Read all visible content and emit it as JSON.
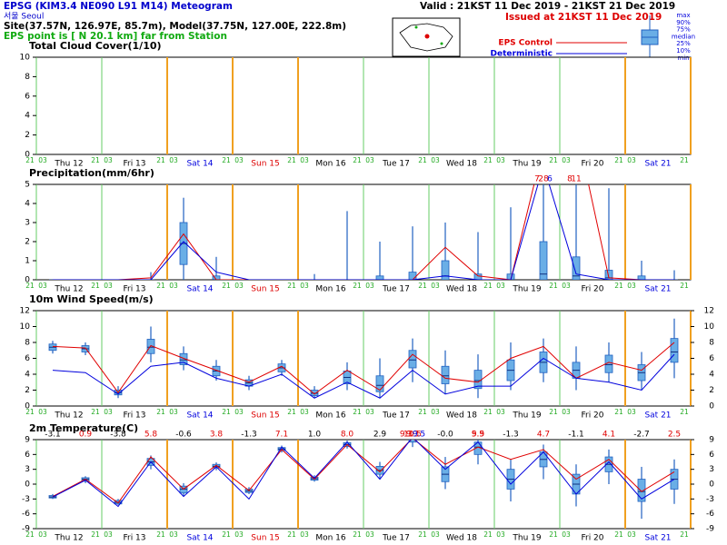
{
  "header": {
    "title": "EPSG (KIM3.4 NE090 L91 M14) Meteogram",
    "station": "서울    Seoul",
    "site": "Site(37.57N, 126.97E,  85.7m), Model(37.75N, 127.00E, 222.8m)",
    "eps_point": "EPS point is [  N  20.1 km] far from Station",
    "valid": "Valid : 21KST 11 Dec 2019 - 21KST 21 Dec 2019",
    "issued": "Issued at 21KST 11 Dec 2019",
    "box_labels": [
      "max",
      "90%",
      "75%",
      "median",
      "25%",
      "10%",
      "min"
    ]
  },
  "time_axis": {
    "hours": [
      "21",
      "03"
    ],
    "days": [
      {
        "label": "Thu 12",
        "color": "#000000"
      },
      {
        "label": "Fri 13",
        "color": "#000000"
      },
      {
        "label": "Sat 14",
        "color": "#0000dd"
      },
      {
        "label": "Sun 15",
        "color": "#dd0000"
      },
      {
        "label": "Mon 16",
        "color": "#000000"
      },
      {
        "label": "Tue 17",
        "color": "#000000"
      },
      {
        "label": "Wed 18",
        "color": "#000000"
      },
      {
        "label": "Thu 19",
        "color": "#000000"
      },
      {
        "label": "Fri 20",
        "color": "#000000"
      },
      {
        "label": "Sat 21",
        "color": "#0000dd"
      }
    ]
  },
  "chart_data": [
    {
      "type": "box",
      "title": "Total Cloud Cover(1/10)",
      "xlim": [
        0,
        240
      ],
      "x": [
        6,
        18,
        30,
        42,
        54,
        66,
        78,
        90,
        102,
        114,
        126,
        138,
        150,
        162,
        174,
        186,
        198,
        210,
        222,
        234
      ],
      "ylim": [
        0,
        10
      ],
      "yticks": [
        0,
        2,
        4,
        6,
        8,
        10
      ],
      "right_ticks": false,
      "series": []
    },
    {
      "type": "box",
      "title": "Precipitation(mm/6hr)",
      "xlim": [
        0,
        240
      ],
      "x": [
        6,
        18,
        30,
        42,
        54,
        66,
        78,
        90,
        102,
        114,
        126,
        138,
        150,
        162,
        174,
        186,
        198,
        210,
        222,
        234
      ],
      "ylim": [
        0,
        5
      ],
      "yticks": [
        0,
        1,
        2,
        3,
        4,
        5
      ],
      "right_ticks": false,
      "series": [
        {
          "type": "box",
          "color": "#6aaee6",
          "values": [
            [
              0,
              0,
              0,
              0,
              0
            ],
            [
              0,
              0,
              0,
              0,
              0
            ],
            [
              0,
              0,
              0,
              0,
              0
            ],
            [
              0,
              0,
              0,
              0,
              0.4
            ],
            [
              0,
              0.8,
              1.9,
              3.0,
              4.3
            ],
            [
              0,
              0,
              0,
              0.2,
              1.2
            ],
            [
              0,
              0,
              0,
              0,
              0
            ],
            [
              0,
              0,
              0,
              0,
              0
            ],
            [
              0,
              0,
              0,
              0,
              0.3
            ],
            [
              0,
              0,
              0,
              0,
              3.6
            ],
            [
              0,
              0,
              0,
              0.2,
              2.0
            ],
            [
              0,
              0,
              0,
              0.4,
              2.8
            ],
            [
              0,
              0,
              0.2,
              1.0,
              3.0
            ],
            [
              0,
              0,
              0,
              0.3,
              2.5
            ],
            [
              0,
              0,
              0,
              0.3,
              3.8
            ],
            [
              0,
              0,
              0.3,
              2.0,
              28
            ],
            [
              0,
              0,
              0.2,
              1.2,
              11
            ],
            [
              0,
              0,
              0.1,
              0.5,
              4.8
            ],
            [
              0,
              0,
              0,
              0.2,
              1.0
            ],
            [
              0,
              0,
              0,
              0,
              0.5
            ]
          ]
        },
        {
          "type": "line",
          "name": "EPS Control",
          "color": "#e00000",
          "values": [
            0,
            0,
            0,
            0.1,
            2.4,
            0,
            0,
            0,
            0,
            0,
            0,
            0,
            1.7,
            0.2,
            0,
            7,
            8,
            0.1,
            0,
            0
          ]
        },
        {
          "type": "line",
          "name": "Deterministic",
          "color": "#0000dd",
          "values": [
            0,
            0,
            0,
            0,
            2.0,
            0.4,
            0,
            0,
            0,
            0,
            0,
            0,
            0.2,
            0,
            0,
            6,
            0.3,
            0,
            0,
            0
          ]
        }
      ]
    },
    {
      "type": "box",
      "title": "10m Wind Speed(m/s)",
      "xlim": [
        0,
        240
      ],
      "x": [
        6,
        18,
        30,
        42,
        54,
        66,
        78,
        90,
        102,
        114,
        126,
        138,
        150,
        162,
        174,
        186,
        198,
        210,
        222,
        234
      ],
      "ylim": [
        0,
        12
      ],
      "yticks": [
        0,
        2,
        4,
        6,
        8,
        10,
        12
      ],
      "right_ticks": true,
      "series": [
        {
          "type": "box",
          "color": "#6aaee6",
          "values": [
            [
              6.6,
              7.0,
              7.4,
              7.8,
              8.2
            ],
            [
              6.4,
              6.8,
              7.2,
              7.6,
              8.0
            ],
            [
              1.0,
              1.4,
              1.7,
              2.0,
              2.5
            ],
            [
              5.5,
              6.6,
              7.4,
              8.4,
              10.0
            ],
            [
              4.5,
              5.2,
              5.8,
              6.6,
              7.5
            ],
            [
              3.2,
              3.8,
              4.4,
              5.0,
              5.8
            ],
            [
              2.0,
              2.5,
              2.9,
              3.3,
              3.8
            ],
            [
              3.8,
              4.3,
              4.8,
              5.3,
              5.8
            ],
            [
              1.0,
              1.3,
              1.6,
              2.0,
              2.5
            ],
            [
              2.0,
              2.8,
              3.6,
              4.4,
              5.5
            ],
            [
              1.0,
              1.8,
              2.6,
              3.8,
              6.0
            ],
            [
              3.0,
              4.8,
              5.8,
              7.0,
              8.5
            ],
            [
              1.5,
              2.8,
              3.8,
              5.0,
              7.0
            ],
            [
              1.0,
              2.2,
              3.2,
              4.5,
              6.5
            ],
            [
              2.0,
              3.2,
              4.5,
              5.8,
              8.0
            ],
            [
              3.0,
              4.2,
              5.5,
              6.8,
              8.5
            ],
            [
              2.0,
              3.5,
              4.5,
              5.5,
              7.5
            ],
            [
              3.0,
              4.2,
              5.2,
              6.4,
              8.0
            ],
            [
              2.0,
              3.2,
              4.2,
              5.2,
              6.8
            ],
            [
              3.5,
              5.5,
              6.8,
              8.5,
              11.0
            ]
          ]
        },
        {
          "type": "line",
          "name": "EPS Control",
          "color": "#e00000",
          "values": [
            7.5,
            7.3,
            1.7,
            7.6,
            6.0,
            4.5,
            3.0,
            5.0,
            1.5,
            4.5,
            2.0,
            6.5,
            3.5,
            3.0,
            6.0,
            7.5,
            3.5,
            5.5,
            4.5,
            8.0
          ]
        },
        {
          "type": "line",
          "name": "Deterministic",
          "color": "#0000dd",
          "values": [
            4.5,
            4.2,
            1.5,
            5.0,
            5.5,
            3.5,
            2.5,
            4.0,
            1.0,
            3.0,
            1.0,
            4.5,
            1.5,
            2.5,
            2.5,
            6.0,
            3.5,
            3.0,
            2.0,
            6.5
          ]
        }
      ]
    },
    {
      "type": "box",
      "title": "2m Temperature(C)",
      "xlim": [
        0,
        240
      ],
      "x": [
        6,
        18,
        30,
        42,
        54,
        66,
        78,
        90,
        102,
        114,
        126,
        138,
        150,
        162,
        174,
        186,
        198,
        210,
        222,
        234
      ],
      "ylim": [
        -9,
        9
      ],
      "yticks": [
        -9,
        -6,
        -3,
        0,
        3,
        6,
        9
      ],
      "right_ticks": true,
      "extremes": {
        "values": [
          -3.1,
          0.9,
          -3.8,
          5.8,
          -0.6,
          3.8,
          -1.3,
          7.1,
          1.0,
          8.0,
          2.9,
          9.3,
          -0.0,
          5.9,
          -1.3,
          4.7,
          -1.1,
          4.1,
          -2.7,
          2.5
        ],
        "value_labels": [
          "-3.1",
          "0.9",
          "-3.8",
          "5.8",
          "-0.6",
          "3.8",
          "-1.3",
          "7.1",
          "1.0",
          "8.0",
          "2.9",
          "9.3",
          "-0.0",
          "5.9",
          "-1.3",
          "4.7",
          "-1.1",
          "4.1",
          "-2.7",
          "2.5"
        ],
        "colors": [
          "#000000",
          "#e00000"
        ]
      },
      "series": [
        {
          "type": "box",
          "color": "#6aaee6",
          "values": [
            [
              -3.0,
              -2.8,
              -2.6,
              -2.3,
              -2.0
            ],
            [
              0.2,
              0.6,
              1.0,
              1.3,
              1.6
            ],
            [
              -4.2,
              -4.0,
              -3.7,
              -3.3,
              -3.0
            ],
            [
              3.0,
              3.8,
              4.5,
              5.2,
              5.8
            ],
            [
              -2.5,
              -1.8,
              -1.0,
              -0.4,
              0.2
            ],
            [
              2.8,
              3.3,
              3.6,
              4.0,
              4.4
            ],
            [
              -2.0,
              -1.7,
              -1.4,
              -1.0,
              -0.6
            ],
            [
              6.4,
              6.8,
              7.1,
              7.4,
              7.8
            ],
            [
              0.5,
              0.8,
              1.1,
              1.4,
              1.8
            ],
            [
              7.2,
              7.6,
              8.0,
              8.4,
              8.8
            ],
            [
              1.0,
              2.0,
              2.8,
              3.6,
              4.5
            ],
            [
              7.5,
              8.5,
              9.2,
              9.8,
              10.5
            ],
            [
              -1.0,
              0.5,
              2.0,
              3.5,
              5.5
            ],
            [
              4.0,
              6.0,
              7.5,
              8.5,
              9.5
            ],
            [
              -3.5,
              -1.0,
              1.0,
              3.0,
              5.0
            ],
            [
              1.0,
              3.5,
              5.0,
              6.5,
              8.0
            ],
            [
              -4.5,
              -2.0,
              0.0,
              2.0,
              4.0
            ],
            [
              0.0,
              2.5,
              4.0,
              5.5,
              7.0
            ],
            [
              -7.0,
              -3.5,
              -1.5,
              1.0,
              3.5
            ],
            [
              -4.0,
              -1.0,
              1.0,
              3.0,
              5.0
            ]
          ]
        },
        {
          "type": "line",
          "name": "EPS Control",
          "color": "#e00000",
          "values": [
            -2.5,
            1.0,
            -3.8,
            5.5,
            -1.0,
            3.8,
            -1.3,
            7.0,
            1.0,
            8.0,
            2.5,
            9.3,
            4.0,
            7.5,
            5.0,
            7.0,
            1.0,
            5.0,
            -1.5,
            2.5
          ]
        },
        {
          "type": "line",
          "name": "Deterministic",
          "color": "#0000dd",
          "values": [
            -2.6,
            0.8,
            -4.5,
            4.5,
            -2.5,
            3.5,
            -3.0,
            7.5,
            1.2,
            8.5,
            1.0,
            9.5,
            3.0,
            8.5,
            0,
            6.5,
            -2.0,
            4.5,
            -3.0,
            1.0
          ]
        }
      ]
    }
  ]
}
